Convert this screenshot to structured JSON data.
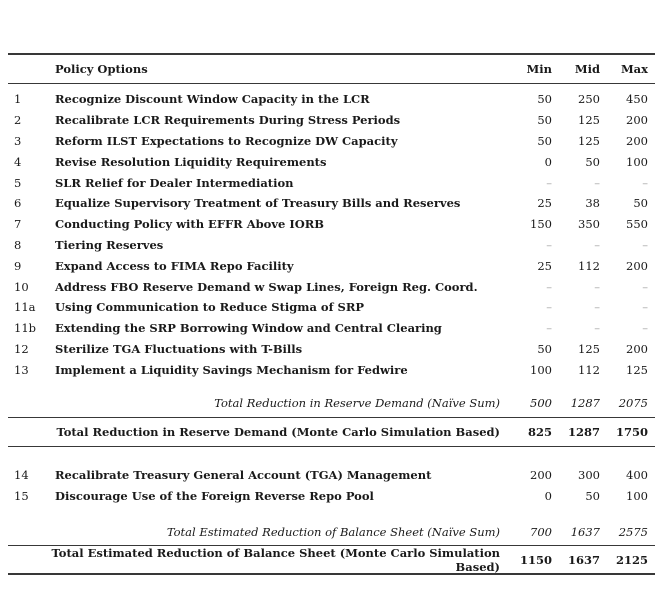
{
  "header": {
    "policy": "Policy Options",
    "min": "Min",
    "mid": "Mid",
    "max": "Max"
  },
  "rows1": [
    {
      "num": "1",
      "label": "Recognize Discount Window Capacity in the LCR",
      "min": "50",
      "mid": "250",
      "max": "450"
    },
    {
      "num": "2",
      "label": "Recalibrate LCR Requirements During Stress Periods",
      "min": "50",
      "mid": "125",
      "max": "200"
    },
    {
      "num": "3",
      "label": "Reform ILST Expectations to Recognize DW Capacity",
      "min": "50",
      "mid": "125",
      "max": "200"
    },
    {
      "num": "4",
      "label": "Revise Resolution Liquidity Requirements",
      "min": "0",
      "mid": "50",
      "max": "100"
    },
    {
      "num": "5",
      "label": "SLR Relief for Dealer Intermediation",
      "min": "–",
      "mid": "–",
      "max": "–"
    },
    {
      "num": "6",
      "label": "Equalize Supervisory Treatment of Treasury Bills and Reserves",
      "min": "25",
      "mid": "38",
      "max": "50"
    },
    {
      "num": "7",
      "label": "Conducting Policy with EFFR Above IORB",
      "min": "150",
      "mid": "350",
      "max": "550"
    },
    {
      "num": "8",
      "label": "Tiering Reserves",
      "min": "–",
      "mid": "–",
      "max": "–"
    },
    {
      "num": "9",
      "label": "Expand Access to FIMA Repo Facility",
      "min": "25",
      "mid": "112",
      "max": "200"
    },
    {
      "num": "10",
      "label": "Address FBO Reserve Demand w Swap Lines, Foreign Reg. Coord.",
      "min": "–",
      "mid": "–",
      "max": "–"
    },
    {
      "num": "11a",
      "label": "Using Communication to Reduce Stigma of SRP",
      "min": "–",
      "mid": "–",
      "max": "–"
    },
    {
      "num": "11b",
      "label": "Extending the SRP Borrowing Window and Central Clearing",
      "min": "–",
      "mid": "–",
      "max": "–"
    },
    {
      "num": "12",
      "label": "Sterilize TGA Fluctuations with T-Bills",
      "min": "50",
      "mid": "125",
      "max": "200"
    },
    {
      "num": "13",
      "label": "Implement a Liquidity Savings Mechanism for Fedwire",
      "min": "100",
      "mid": "112",
      "max": "125"
    }
  ],
  "naive1": {
    "label": "Total Reduction in Reserve Demand (Naïve Sum)",
    "min": "500",
    "mid": "1287",
    "max": "2075"
  },
  "mc1": {
    "label": "Total Reduction in Reserve Demand (Monte Carlo Simulation Based)",
    "min": "825",
    "mid": "1287",
    "max": "1750"
  },
  "rows2": [
    {
      "num": "14",
      "label": "Recalibrate Treasury General Account (TGA) Management",
      "min": "200",
      "mid": "300",
      "max": "400"
    },
    {
      "num": "15",
      "label": "Discourage Use of the Foreign Reverse Repo Pool",
      "min": "0",
      "mid": "50",
      "max": "100"
    }
  ],
  "naive2": {
    "label": "Total Estimated Reduction of Balance Sheet (Naïve Sum)",
    "min": "700",
    "mid": "1637",
    "max": "2575"
  },
  "mc2": {
    "label": "Total Estimated Reduction of Balance Sheet (Monte Carlo Simulation Based)",
    "min": "1150",
    "mid": "1637",
    "max": "2125"
  },
  "colors": {
    "text": "#1a1a1a",
    "rule": "#383838",
    "dash_muted": "#a6a6a6",
    "background": "#ffffff"
  }
}
